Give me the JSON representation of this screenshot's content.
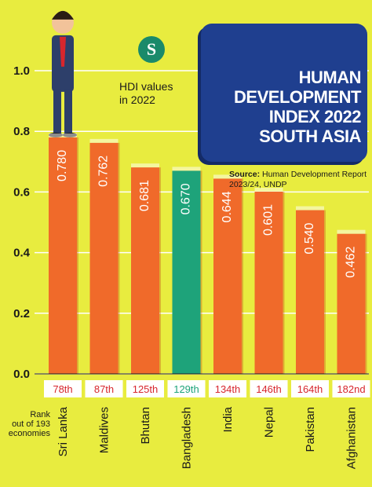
{
  "header": {
    "title_lines": [
      "HUMAN",
      "DEVELOPMENT",
      "INDEX 2022",
      "SOUTH ASIA"
    ]
  },
  "logo": {
    "letter": "S",
    "color": "#1a8a6a"
  },
  "source": {
    "label": "Source:",
    "text": "Human Development Report 2023/24, UNDP"
  },
  "hdi_note": {
    "line1": "HDI values",
    "line2": "in 2022"
  },
  "rank_caption": {
    "line1": "Rank",
    "line2": "out of 193",
    "line3": "economies"
  },
  "colors": {
    "background": "#e8ec3f",
    "bar": "#f06a2a",
    "highlight_bar": "#1ea37a",
    "header_box": "#1f3f8f",
    "rank_text": "#d7262d",
    "rank_highlight_text": "#1ea37a"
  },
  "chart_data": {
    "type": "bar",
    "categories": [
      "Sri Lanka",
      "Maldives",
      "Bhutan",
      "Bangladesh",
      "India",
      "Nepal",
      "Pakistan",
      "Afghanistan"
    ],
    "values": [
      0.78,
      0.762,
      0.681,
      0.67,
      0.644,
      0.601,
      0.54,
      0.462
    ],
    "value_labels": [
      "0.780",
      "0.762",
      "0.681",
      "0.670",
      "0.644",
      "0.601",
      "0.540",
      "0.462"
    ],
    "ranks": [
      "78th",
      "87th",
      "125th",
      "129th",
      "134th",
      "146th",
      "164th",
      "182nd"
    ],
    "highlight_index": 3,
    "yticks": [
      "0.0",
      "0.2",
      "0.4",
      "0.6",
      "0.8",
      "1.0"
    ],
    "ylim": [
      0,
      1.0
    ],
    "xlabel": "",
    "ylabel": "",
    "title": "",
    "grid": true,
    "legend": "none"
  }
}
